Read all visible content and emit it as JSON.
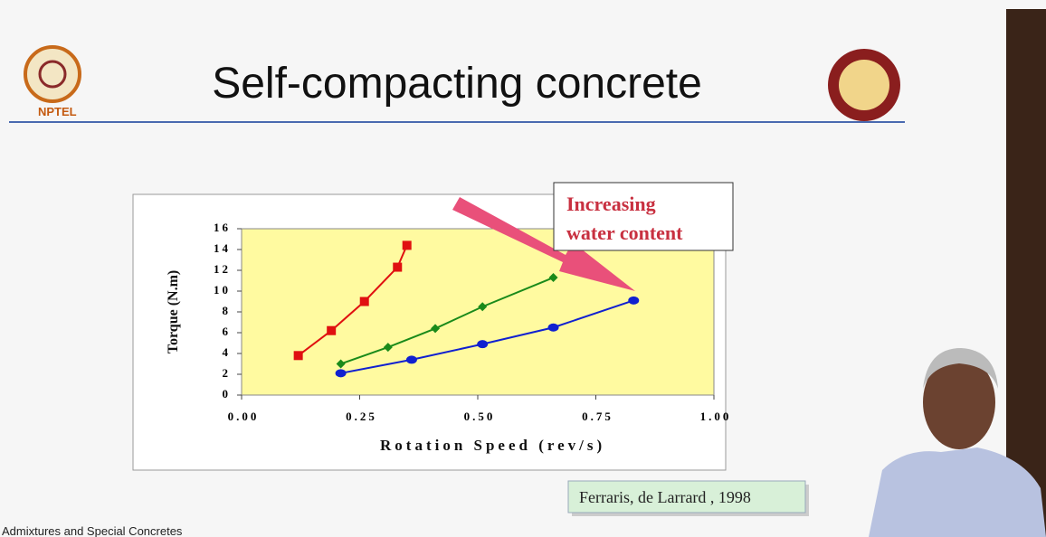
{
  "slide": {
    "title": "Self-compacting concrete",
    "logo_text": "NPTEL",
    "footer": "Admixtures and Special Concretes",
    "callout": [
      "Increasing",
      "water content"
    ],
    "citation": "Ferraris, de Larrard , 1998"
  },
  "chart_data": {
    "type": "line",
    "xlabel": "Rotation Speed (rev/s)",
    "ylabel": "Torque (N.m)",
    "xlim": [
      0,
      1
    ],
    "xticks": [
      {
        "value": 0,
        "label": "0.00"
      },
      {
        "value": 0.25,
        "label": "0.25"
      },
      {
        "value": 0.5,
        "label": "0.50"
      },
      {
        "value": 0.75,
        "label": "0.75"
      },
      {
        "value": 1,
        "label": "1.00"
      }
    ],
    "ylim": [
      0,
      16
    ],
    "yticks": [
      0,
      2,
      4,
      6,
      8,
      10,
      12,
      14,
      16
    ],
    "series": [
      {
        "color": "#e01010",
        "marker": "square",
        "x": [
          0.12,
          0.19,
          0.26,
          0.33,
          0.35
        ],
        "values": [
          3.8,
          6.2,
          9.0,
          12.3,
          14.4
        ]
      },
      {
        "color": "#1a8a1a",
        "marker": "diamond",
        "x": [
          0.21,
          0.31,
          0.41,
          0.51,
          0.66
        ],
        "values": [
          3.0,
          4.6,
          6.4,
          8.5,
          11.3
        ]
      },
      {
        "color": "#1020d0",
        "marker": "circle",
        "x": [
          0.21,
          0.36,
          0.51,
          0.66,
          0.83
        ],
        "values": [
          2.1,
          3.4,
          4.9,
          6.5,
          9.1
        ]
      }
    ]
  }
}
